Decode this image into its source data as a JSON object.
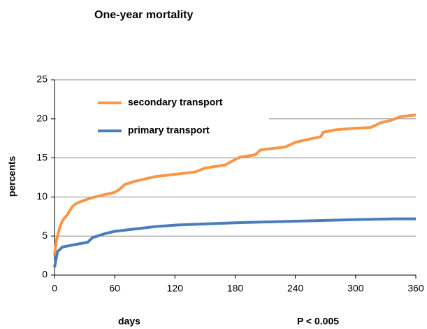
{
  "chart_data": {
    "type": "line",
    "title": "One-year mortality",
    "x_label": "days",
    "y_label": "percents",
    "annotation": "P < 0.005",
    "xlim": [
      0,
      360
    ],
    "xticks": [
      0,
      60,
      120,
      180,
      240,
      300,
      360
    ],
    "ylim": [
      0,
      25
    ],
    "yticks": [
      0,
      5,
      10,
      15,
      20,
      25
    ],
    "grid": true,
    "legend": "upper left",
    "series": [
      {
        "name": "secondary transport",
        "color": "#f79646",
        "x": [
          0,
          2,
          5,
          8,
          12,
          18,
          22,
          30,
          40,
          50,
          60,
          65,
          70,
          80,
          90,
          100,
          120,
          140,
          150,
          170,
          180,
          185,
          200,
          205,
          210,
          230,
          240,
          250,
          265,
          268,
          280,
          300,
          315,
          325,
          335,
          345,
          360
        ],
        "values": [
          2.5,
          4.5,
          6,
          7,
          7.6,
          8.8,
          9.2,
          9.6,
          10,
          10.3,
          10.6,
          11,
          11.6,
          12,
          12.3,
          12.6,
          12.9,
          13.2,
          13.7,
          14.1,
          14.8,
          15.1,
          15.4,
          16.0,
          16.1,
          16.4,
          17.0,
          17.3,
          17.7,
          18.3,
          18.6,
          18.8,
          18.9,
          19.5,
          19.8,
          20.3,
          20.5
        ]
      },
      {
        "name": "primary transport",
        "color": "#4a7ebb",
        "x": [
          0,
          3,
          8,
          20,
          33,
          38,
          50,
          60,
          80,
          100,
          120,
          180,
          240,
          300,
          340,
          360
        ],
        "values": [
          1,
          3,
          3.6,
          3.9,
          4.2,
          4.8,
          5.3,
          5.6,
          5.9,
          6.2,
          6.4,
          6.7,
          6.9,
          7.1,
          7.2,
          7.2
        ]
      }
    ]
  }
}
